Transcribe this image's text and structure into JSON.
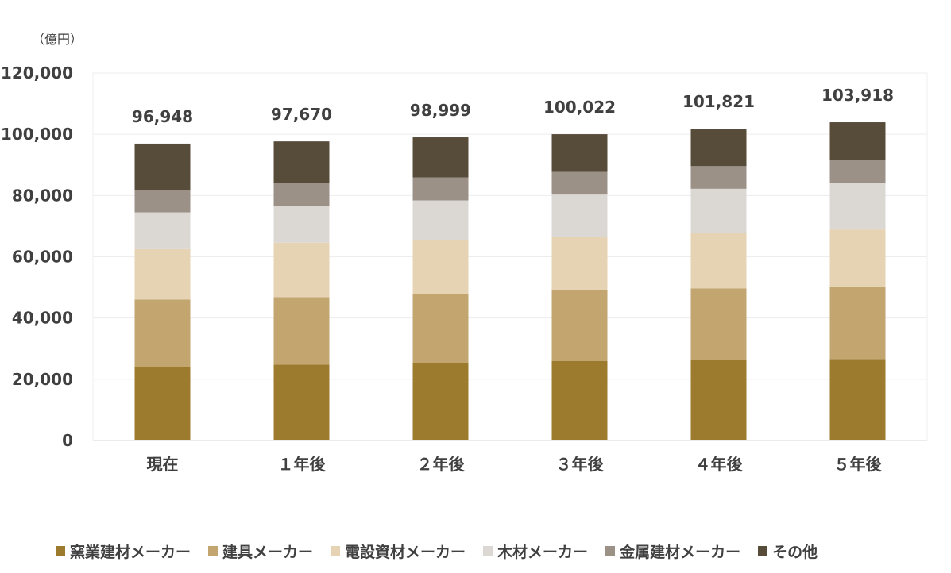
{
  "unit_label": "（億円）",
  "chart_data": {
    "type": "bar",
    "stacked": true,
    "categories": [
      "現在",
      "１年後",
      "２年後",
      "３年後",
      "４年後",
      "５年後"
    ],
    "ylim": [
      0,
      120000
    ],
    "yticks": [
      "0",
      "20,000",
      "40,000",
      "60,000",
      "80,000",
      "100,000",
      "120,000"
    ],
    "ytick_values": [
      0,
      20000,
      40000,
      60000,
      80000,
      100000,
      120000
    ],
    "grid": true,
    "legend_position": "bottom",
    "totals": [
      96948,
      97670,
      98999,
      100022,
      101821,
      103918
    ],
    "total_labels": [
      "96,948",
      "97,670",
      "98,999",
      "100,022",
      "101,821",
      "103,918"
    ],
    "series": [
      {
        "name": "窯業建材メーカー",
        "color": "#9C7A2E",
        "values": [
          24000,
          24800,
          25300,
          26000,
          26300,
          26600
        ]
      },
      {
        "name": "建具メーカー",
        "color": "#C2A56F",
        "values": [
          22000,
          22000,
          22400,
          23100,
          23400,
          23700
        ]
      },
      {
        "name": "電設資材メーカー",
        "color": "#E6D3B3",
        "values": [
          16500,
          17800,
          17800,
          17400,
          18000,
          18600
        ]
      },
      {
        "name": "木材メーカー",
        "color": "#DBD8D4",
        "values": [
          12000,
          12000,
          12900,
          13800,
          14500,
          15200
        ]
      },
      {
        "name": "金属建材メーカー",
        "color": "#9B9187",
        "values": [
          7400,
          7500,
          7500,
          7400,
          7400,
          7500
        ]
      },
      {
        "name": "その他",
        "color": "#574B3A",
        "values": [
          15048,
          13570,
          13099,
          12322,
          12221,
          12318
        ]
      }
    ]
  }
}
